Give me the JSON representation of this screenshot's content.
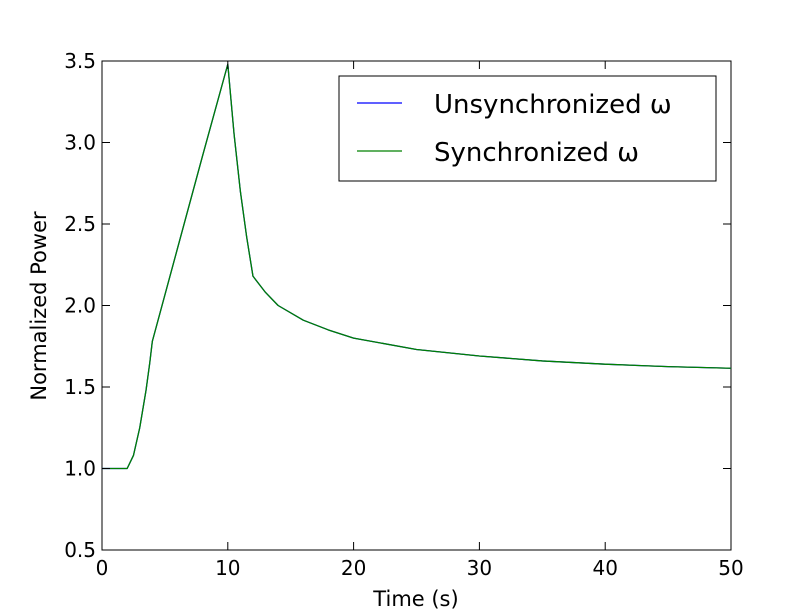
{
  "chart_data": {
    "type": "line",
    "xlabel": "Time (s)",
    "ylabel": "Normalized Power",
    "xlim": [
      0,
      50
    ],
    "ylim": [
      0.5,
      3.5
    ],
    "xticks": [
      0,
      10,
      20,
      30,
      40,
      50
    ],
    "yticks": [
      0.5,
      1.0,
      1.5,
      2.0,
      2.5,
      3.0,
      3.5
    ],
    "xtick_labels": [
      "0",
      "10",
      "20",
      "30",
      "40",
      "50"
    ],
    "ytick_labels": [
      "0.5",
      "1.0",
      "1.5",
      "2.0",
      "2.5",
      "3.0",
      "3.5"
    ],
    "grid": false,
    "legend_position": "top-right",
    "series": [
      {
        "name": "Unsynchronized ω",
        "color": "#0000ff",
        "x": [
          0,
          2,
          2.5,
          3,
          3.5,
          3.8,
          4,
          6,
          8,
          10,
          10.5,
          11,
          11.5,
          12,
          13,
          14,
          16,
          18,
          20,
          25,
          30,
          35,
          40,
          45,
          50
        ],
        "y": [
          1.0,
          1.0,
          1.08,
          1.25,
          1.48,
          1.65,
          1.78,
          2.35,
          2.92,
          3.48,
          3.05,
          2.7,
          2.42,
          2.18,
          2.08,
          2.0,
          1.91,
          1.85,
          1.8,
          1.73,
          1.69,
          1.66,
          1.64,
          1.625,
          1.615
        ]
      },
      {
        "name": "Synchronized ω",
        "color": "#008000",
        "x": [
          0,
          2,
          2.5,
          3,
          3.5,
          3.8,
          4,
          6,
          8,
          10,
          10.5,
          11,
          11.5,
          12,
          13,
          14,
          16,
          18,
          20,
          25,
          30,
          35,
          40,
          45,
          50
        ],
        "y": [
          1.0,
          1.0,
          1.08,
          1.25,
          1.48,
          1.65,
          1.78,
          2.35,
          2.92,
          3.48,
          3.05,
          2.7,
          2.42,
          2.18,
          2.08,
          2.0,
          1.91,
          1.85,
          1.8,
          1.73,
          1.69,
          1.66,
          1.64,
          1.625,
          1.615
        ]
      }
    ]
  }
}
